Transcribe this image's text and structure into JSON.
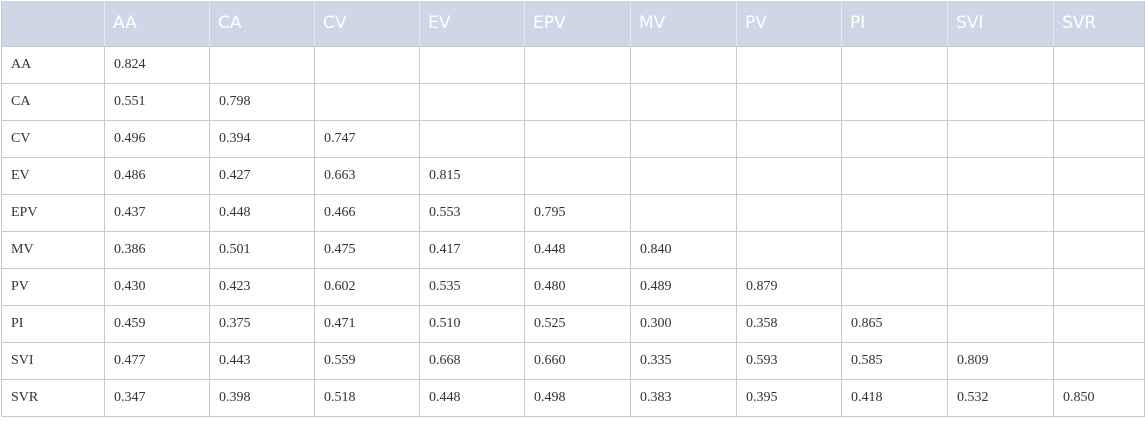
{
  "table": {
    "headers": [
      "",
      "AA",
      "CA",
      "CV",
      "EV",
      "EPV",
      "MV",
      "PV",
      "PI",
      "SVI",
      "SVR"
    ],
    "rows": [
      {
        "label": "AA",
        "values": [
          "0.824",
          "",
          "",
          "",
          "",
          "",
          "",
          "",
          "",
          ""
        ]
      },
      {
        "label": "CA",
        "values": [
          "0.551",
          "0.798",
          "",
          "",
          "",
          "",
          "",
          "",
          "",
          ""
        ]
      },
      {
        "label": "CV",
        "values": [
          "0.496",
          "0.394",
          "0.747",
          "",
          "",
          "",
          "",
          "",
          "",
          ""
        ]
      },
      {
        "label": "EV",
        "values": [
          "0.486",
          "0.427",
          "0.663",
          "0.815",
          "",
          "",
          "",
          "",
          "",
          ""
        ]
      },
      {
        "label": "EPV",
        "values": [
          "0.437",
          "0.448",
          "0.466",
          "0.553",
          "0.795",
          "",
          "",
          "",
          "",
          ""
        ]
      },
      {
        "label": "MV",
        "values": [
          "0.386",
          "0.501",
          "0.475",
          "0.417",
          "0.448",
          "0.840",
          "",
          "",
          "",
          ""
        ]
      },
      {
        "label": "PV",
        "values": [
          "0.430",
          "0.423",
          "0.602",
          "0.535",
          "0.480",
          "0.489",
          "0.879",
          "",
          "",
          ""
        ]
      },
      {
        "label": "PI",
        "values": [
          "0.459",
          "0.375",
          "0.471",
          "0.510",
          "0.525",
          "0.300",
          "0.358",
          "0.865",
          "",
          ""
        ]
      },
      {
        "label": "SVI",
        "values": [
          "0.477",
          "0.443",
          "0.559",
          "0.668",
          "0.660",
          "0.335",
          "0.593",
          "0.585",
          "0.809",
          ""
        ]
      },
      {
        "label": "SVR",
        "values": [
          "0.347",
          "0.398",
          "0.518",
          "0.448",
          "0.498",
          "0.383",
          "0.395",
          "0.418",
          "0.532",
          "0.850"
        ]
      }
    ]
  },
  "colors": {
    "header_background": "#cdd7e6",
    "header_text": "#ffffff",
    "grid_line": "#c9c9c9",
    "body_text": "#333333"
  }
}
